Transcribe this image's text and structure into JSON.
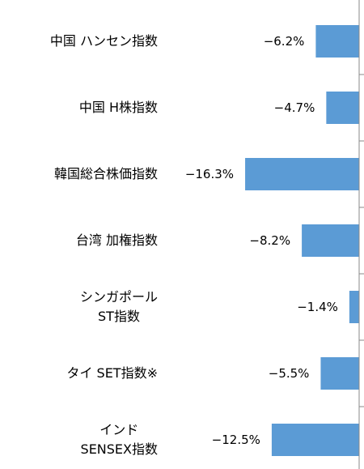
{
  "chart_data": {
    "type": "barh",
    "categories": [
      "中国 ハンセン指数",
      "中国 H株指数",
      "韓国総合株価指数",
      "台湾 加権指数",
      "シンガポール\nST指数",
      "タイ SET指数※",
      "インド\nSENSEX指数"
    ],
    "values": [
      -6.2,
      -4.7,
      -16.3,
      -8.2,
      -1.4,
      -5.5,
      -12.5
    ],
    "value_labels": [
      "−6.2%",
      "−4.7%",
      "−16.3%",
      "−8.2%",
      "−1.4%",
      "−5.5%",
      "−12.5%"
    ],
    "color": "#5b9bd5",
    "xlim": [
      -17,
      0
    ]
  }
}
